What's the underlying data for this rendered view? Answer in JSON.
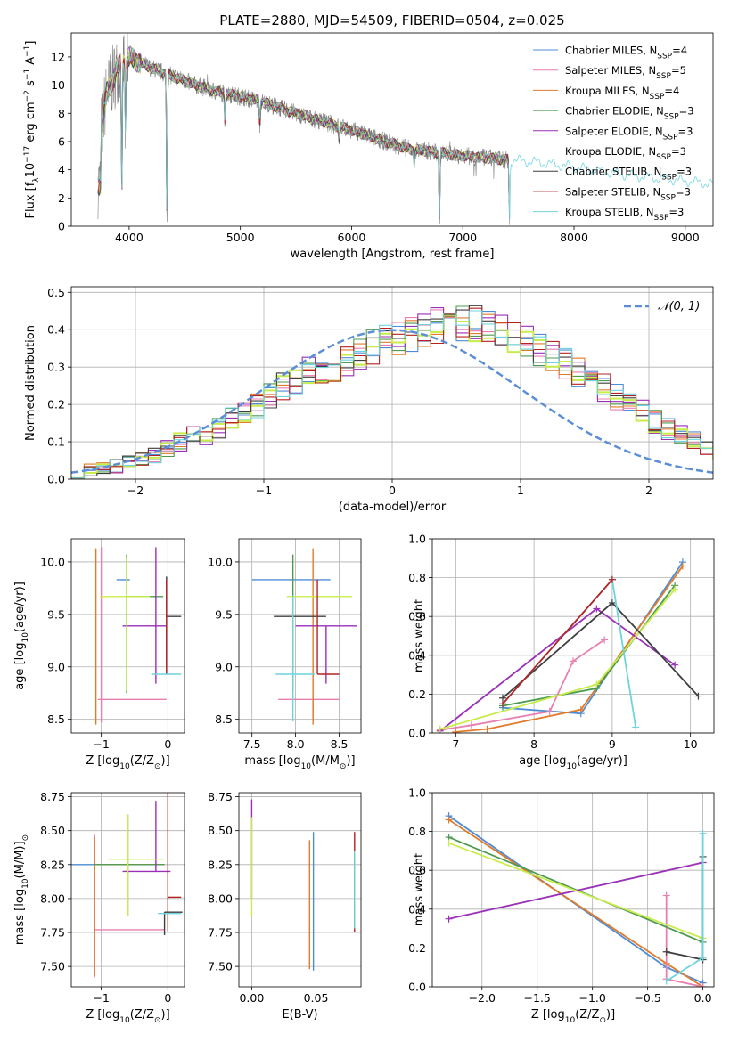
{
  "figure_title": "PLATE=2880, MJD=54509, FIBERID=0504, z=0.025",
  "colors": {
    "Chabrier MILES": "#4f8cd6",
    "Salpeter MILES": "#e87fb0",
    "Kroupa MILES": "#e07b2a",
    "Chabrier ELODIE": "#4e9a52",
    "Salpeter ELODIE": "#9a2fb8",
    "Kroupa ELODIE": "#c8ec4c",
    "Chabrier STELIB": "#3f3f3f",
    "Salpeter STELIB": "#b52222",
    "Kroupa STELIB": "#6fd3df",
    "data": "#808080",
    "normal": "#5b8ed6"
  },
  "chart_data": [
    {
      "id": "spectrum",
      "type": "line",
      "xlabel": "wavelength [Angstrom, rest frame]",
      "ylabel": "Flux [f",
      "ylabel_sub": "λ",
      "ylabel_rest": "10",
      "ylabel_exp": "−17",
      "ylabel_rest2": " erg cm",
      "ylabel_exp2": "−2",
      "ylabel_rest3": " s",
      "ylabel_exp3": "−1",
      "ylabel_rest4": " A",
      "ylabel_exp4": "−1",
      "ylabel_rest5": "]",
      "xlim": [
        3480,
        9250
      ],
      "ylim": [
        0,
        13.7
      ],
      "xticks": [
        4000,
        5000,
        6000,
        7000,
        8000,
        9000
      ],
      "yticks": [
        0,
        2,
        4,
        6,
        8,
        10,
        12
      ],
      "continuum": [
        [
          3750,
          7.0
        ],
        [
          3800,
          9.5
        ],
        [
          3900,
          11.2
        ],
        [
          4000,
          12.0
        ],
        [
          4100,
          11.6
        ],
        [
          4200,
          11.2
        ],
        [
          4400,
          10.6
        ],
        [
          4600,
          10.0
        ],
        [
          4800,
          9.5
        ],
        [
          5000,
          9.2
        ],
        [
          5200,
          8.8
        ],
        [
          5500,
          8.0
        ],
        [
          6000,
          6.8
        ],
        [
          6500,
          5.5
        ],
        [
          7000,
          5.0
        ],
        [
          7400,
          4.7
        ],
        [
          7600,
          4.6
        ],
        [
          8000,
          4.2
        ],
        [
          8500,
          3.6
        ],
        [
          9000,
          3.2
        ],
        [
          9250,
          3.0
        ]
      ],
      "data_range": [
        3720,
        7420
      ],
      "absorption_lines": [
        [
          3934,
          0.15
        ],
        [
          3968,
          0.55
        ],
        [
          4340,
          0.0
        ],
        [
          4861,
          0.8
        ],
        [
          5175,
          0.8
        ],
        [
          5890,
          0.85
        ],
        [
          6563,
          0.8
        ],
        [
          6790,
          0.0
        ],
        [
          7420,
          0.0
        ]
      ],
      "legend": [
        {
          "label": "Chabrier MILES, N",
          "sub": "SSP",
          "suffix": "=4"
        },
        {
          "label": "Salpeter MILES, N",
          "sub": "SSP",
          "suffix": "=5"
        },
        {
          "label": "Kroupa MILES, N",
          "sub": "SSP",
          "suffix": "=4"
        },
        {
          "label": "Chabrier ELODIE, N",
          "sub": "SSP",
          "suffix": "=3"
        },
        {
          "label": "Salpeter ELODIE, N",
          "sub": "SSP",
          "suffix": "=3"
        },
        {
          "label": "Kroupa ELODIE, N",
          "sub": "SSP",
          "suffix": "=3"
        },
        {
          "label": "Chabrier STELIB, N",
          "sub": "SSP",
          "suffix": "=3"
        },
        {
          "label": "Salpeter STELIB, N",
          "sub": "SSP",
          "suffix": "=3"
        },
        {
          "label": "Kroupa STELIB, N",
          "sub": "SSP",
          "suffix": "=3"
        }
      ]
    },
    {
      "id": "residuals",
      "type": "histogram",
      "xlabel": "(data-model)/error",
      "ylabel": "Normed distribution",
      "xlim": [
        -2.5,
        2.5
      ],
      "ylim": [
        0,
        0.515
      ],
      "xticks": [
        -2,
        -1,
        0,
        1,
        2
      ],
      "yticks": [
        0.0,
        0.1,
        0.2,
        0.3,
        0.4,
        0.5
      ],
      "bin_width": 0.1,
      "bin_start": -2.5,
      "base_values": [
        0.018,
        0.025,
        0.03,
        0.035,
        0.045,
        0.055,
        0.065,
        0.085,
        0.1,
        0.115,
        0.12,
        0.14,
        0.16,
        0.18,
        0.195,
        0.22,
        0.245,
        0.265,
        0.285,
        0.29,
        0.3,
        0.32,
        0.34,
        0.355,
        0.37,
        0.38,
        0.39,
        0.4,
        0.41,
        0.41,
        0.42,
        0.415,
        0.41,
        0.395,
        0.38,
        0.365,
        0.345,
        0.33,
        0.31,
        0.29,
        0.27,
        0.245,
        0.22,
        0.2,
        0.18,
        0.155,
        0.135,
        0.115,
        0.1,
        0.085,
        0.07,
        0.06,
        0.05,
        0.045,
        0.04,
        0.035,
        0.03,
        0.028,
        0.025,
        0.025
      ],
      "legend": "𝒩(0, 1)"
    },
    {
      "id": "age_vs_Z",
      "type": "errorbar",
      "xlabel": "Z [log",
      "xlabel_sub": "10",
      "xlabel_rest": "(Z/Z",
      "xlabel_sub2": "⊙",
      "xlabel_rest2": ")]",
      "ylabel": "age  [log",
      "ylabel_sub": "10",
      "ylabel_rest": "(age/yr)]",
      "xlim": [
        -1.45,
        0.25
      ],
      "ylim": [
        8.37,
        10.22
      ],
      "xticks": [
        -1,
        0
      ],
      "yticks": [
        8.5,
        9.0,
        9.5,
        10.0
      ],
      "points": [
        {
          "s": "Chabrier MILES",
          "x": -1.02,
          "y": 9.83,
          "xe": [
            -0.45,
            0.25
          ],
          "ye": [
            0,
            0
          ]
        },
        {
          "s": "Salpeter MILES",
          "x": -1.0,
          "y": 8.69,
          "xe": [
            0.05,
            0.98
          ],
          "ye": [
            0.22,
            1.45
          ]
        },
        {
          "s": "Kroupa MILES",
          "x": -1.08,
          "y": 9.83,
          "xe": [
            0.0,
            0.0
          ],
          "ye": [
            1.38,
            0.3
          ]
        },
        {
          "s": "Chabrier ELODIE",
          "x": -0.62,
          "y": 9.67,
          "xe": [
            0.0,
            0.55
          ],
          "ye": [
            0.92,
            0.4
          ]
        },
        {
          "s": "Salpeter ELODIE",
          "x": -0.18,
          "y": 9.39,
          "xe": [
            0.5,
            0.15
          ],
          "ye": [
            0.55,
            0.75
          ]
        },
        {
          "s": "Kroupa ELODIE",
          "x": -0.62,
          "y": 9.67,
          "xe": [
            0.4,
            0.35
          ],
          "ye": [
            0.9,
            0.38
          ]
        },
        {
          "s": "Chabrier STELIB",
          "x": -0.02,
          "y": 9.48,
          "xe": [
            0.0,
            0.22
          ],
          "ye": [
            0.55,
            0.38
          ]
        },
        {
          "s": "Salpeter STELIB",
          "x": -0.02,
          "y": 9.83,
          "xe": [
            0.0,
            0.0
          ],
          "ye": [
            0.9,
            0.0
          ]
        },
        {
          "s": "Kroupa STELIB",
          "x": 0.0,
          "y": 8.93,
          "xe": [
            0.25,
            0.2
          ],
          "ye": [
            0.0,
            0.0
          ]
        }
      ]
    },
    {
      "id": "age_vs_mass",
      "type": "errorbar",
      "xlabel": "mass [log",
      "xlabel_sub": "10",
      "xlabel_rest": "(M/M",
      "xlabel_sub2": "⊙",
      "xlabel_rest2": ")]",
      "ylabel": "",
      "xlim": [
        7.35,
        8.75
      ],
      "ylim": [
        8.37,
        10.22
      ],
      "xticks": [
        7.5,
        8.0,
        8.5
      ],
      "yticks": [
        8.5,
        9.0,
        9.5,
        10.0
      ],
      "points": [
        {
          "s": "Chabrier MILES",
          "x": 8.2,
          "y": 9.83,
          "xe": [
            0.7,
            0.2
          ],
          "ye": [
            0,
            0
          ]
        },
        {
          "s": "Salpeter MILES",
          "x": 8.2,
          "y": 8.69,
          "xe": [
            0.4,
            0.3
          ],
          "ye": [
            0.2,
            0.0
          ]
        },
        {
          "s": "Kroupa MILES",
          "x": 8.2,
          "y": 9.83,
          "xe": [
            0.0,
            0.0
          ],
          "ye": [
            1.38,
            0.3
          ]
        },
        {
          "s": "Chabrier ELODIE",
          "x": 7.97,
          "y": 9.67,
          "xe": [
            0.0,
            0.0
          ],
          "ye": [
            0.9,
            0.4
          ]
        },
        {
          "s": "Salpeter ELODIE",
          "x": 8.35,
          "y": 9.39,
          "xe": [
            0.35,
            0.35
          ],
          "ye": [
            0.55,
            0.0
          ]
        },
        {
          "s": "Kroupa ELODIE",
          "x": 8.2,
          "y": 9.67,
          "xe": [
            0.3,
            0.45
          ],
          "ye": [
            0.0,
            0.0
          ]
        },
        {
          "s": "Chabrier STELIB",
          "x": 8.1,
          "y": 9.48,
          "xe": [
            0.35,
            0.25
          ],
          "ye": [
            0.0,
            0.0
          ]
        },
        {
          "s": "Salpeter STELIB",
          "x": 8.25,
          "y": 8.93,
          "xe": [
            0.0,
            0.25
          ],
          "ye": [
            0.0,
            0.9
          ]
        },
        {
          "s": "Kroupa STELIB",
          "x": 7.97,
          "y": 8.93,
          "xe": [
            0.2,
            0.25
          ],
          "ye": [
            0.45,
            0.75
          ]
        }
      ]
    },
    {
      "id": "weight_vs_age",
      "type": "line",
      "xlabel": "age  [log",
      "xlabel_sub": "10",
      "xlabel_rest": "(age/yr)]",
      "ylabel": "mass weight",
      "xlim": [
        6.7,
        10.3
      ],
      "ylim": [
        0,
        1.0
      ],
      "xticks": [
        7,
        8,
        9,
        10
      ],
      "yticks": [
        0.0,
        0.2,
        0.4,
        0.6,
        0.8,
        1.0
      ],
      "series": [
        {
          "s": "Chabrier MILES",
          "x": [
            7.6,
            8.6,
            9.9
          ],
          "y": [
            0.13,
            0.1,
            0.88
          ]
        },
        {
          "s": "Kroupa MILES",
          "x": [
            7.0,
            7.4,
            8.6,
            9.9
          ],
          "y": [
            0.005,
            0.02,
            0.12,
            0.86
          ]
        },
        {
          "s": "Salpeter MILES",
          "x": [
            6.8,
            7.2,
            8.2,
            8.5,
            8.9
          ],
          "y": [
            0.015,
            0.04,
            0.11,
            0.37,
            0.48
          ]
        },
        {
          "s": "Chabrier ELODIE",
          "x": [
            7.6,
            8.8,
            9.8
          ],
          "y": [
            0.14,
            0.23,
            0.76
          ]
        },
        {
          "s": "Salpeter ELODIE",
          "x": [
            6.8,
            8.8,
            9.8
          ],
          "y": [
            0.01,
            0.64,
            0.35
          ]
        },
        {
          "s": "Kroupa ELODIE",
          "x": [
            6.8,
            8.8,
            9.8
          ],
          "y": [
            0.02,
            0.25,
            0.74
          ]
        },
        {
          "s": "Chabrier STELIB",
          "x": [
            7.6,
            9.0,
            10.1
          ],
          "y": [
            0.18,
            0.67,
            0.19
          ]
        },
        {
          "s": "Kroupa STELIB",
          "x": [
            7.6,
            9.0,
            9.3
          ],
          "y": [
            0.15,
            0.79,
            0.03
          ]
        },
        {
          "s": "Salpeter STELIB",
          "x": [
            7.6,
            9.0
          ],
          "y": [
            0.15,
            0.79
          ]
        }
      ]
    },
    {
      "id": "mass_vs_Z",
      "type": "errorbar",
      "xlabel": "Z [log",
      "xlabel_sub": "10",
      "xlabel_rest": "(Z/Z",
      "xlabel_sub2": "⊙",
      "xlabel_rest2": ")]",
      "ylabel": "mass [log",
      "ylabel_sub": "10",
      "ylabel_rest": "(M/M",
      "ylabel_sub2": "⊙",
      "ylabel_rest2": ")]",
      "xlim": [
        -1.45,
        0.25
      ],
      "ylim": [
        7.35,
        8.78
      ],
      "xticks": [
        -1,
        0
      ],
      "yticks": [
        7.5,
        7.75,
        8.0,
        8.25,
        8.5,
        8.75
      ],
      "points": [
        {
          "s": "Chabrier MILES",
          "x": -1.1,
          "y": 8.25,
          "xe": [
            0.35,
            0.3
          ],
          "ye": [
            0.0,
            0.0
          ]
        },
        {
          "s": "Salpeter MILES",
          "x": -1.1,
          "y": 7.77,
          "xe": [
            0.0,
            1.05
          ],
          "ye": [
            0.35,
            0.7
          ]
        },
        {
          "s": "Kroupa MILES",
          "x": -1.1,
          "y": 8.25,
          "xe": [
            0.0,
            1.05
          ],
          "ye": [
            0.82,
            0.2
          ]
        },
        {
          "s": "Chabrier ELODIE",
          "x": -0.6,
          "y": 8.25,
          "xe": [
            0.5,
            0.55
          ],
          "ye": [
            0.38,
            0.37
          ]
        },
        {
          "s": "Salpeter ELODIE",
          "x": -0.18,
          "y": 8.2,
          "xe": [
            0.5,
            0.22
          ],
          "ye": [
            0.0,
            0.52
          ]
        },
        {
          "s": "Kroupa ELODIE",
          "x": -0.6,
          "y": 8.29,
          "xe": [
            0.3,
            0.55
          ],
          "ye": [
            0.42,
            0.33
          ]
        },
        {
          "s": "Chabrier STELIB",
          "x": -0.05,
          "y": 7.9,
          "xe": [
            0.0,
            0.27
          ],
          "ye": [
            0.17,
            0.0
          ]
        },
        {
          "s": "Salpeter STELIB",
          "x": 0.0,
          "y": 8.01,
          "xe": [
            0.0,
            0.2
          ],
          "ye": [
            0.25,
            0.77
          ]
        },
        {
          "s": "Kroupa STELIB",
          "x": 0.0,
          "y": 7.89,
          "xe": [
            0.15,
            0.2
          ],
          "ye": [
            0.0,
            0.0
          ]
        }
      ]
    },
    {
      "id": "mass_vs_ebv",
      "type": "errorbar",
      "xlabel": "E(B-V)",
      "ylabel": "",
      "xlim": [
        -0.01,
        0.085
      ],
      "ylim": [
        7.35,
        8.78
      ],
      "xticks": [
        0.0,
        0.05
      ],
      "yticks": [
        7.5,
        7.75,
        8.0,
        8.25,
        8.5,
        8.75
      ],
      "points": [
        {
          "s": "Salpeter ELODIE",
          "x": 0.0,
          "y": 8.4,
          "xe": [
            0,
            0
          ],
          "ye": [
            0.4,
            0.33
          ]
        },
        {
          "s": "Kroupa ELODIE",
          "x": 0.0,
          "y": 8.25,
          "xe": [
            0,
            0
          ],
          "ye": [
            0.38,
            0.35
          ]
        },
        {
          "s": "Kroupa MILES",
          "x": 0.045,
          "y": 7.9,
          "xe": [
            0,
            0
          ],
          "ye": [
            0.42,
            0.53
          ]
        },
        {
          "s": "Chabrier MILES",
          "x": 0.048,
          "y": 8.0,
          "xe": [
            0,
            0
          ],
          "ye": [
            0.53,
            0.49
          ]
        },
        {
          "s": "Salpeter STELIB",
          "x": 0.08,
          "y": 8.1,
          "xe": [
            0,
            0
          ],
          "ye": [
            0.35,
            0.39
          ]
        },
        {
          "s": "Kroupa STELIB",
          "x": 0.08,
          "y": 8.0,
          "xe": [
            0,
            0
          ],
          "ye": [
            0.22,
            0.35
          ]
        }
      ]
    },
    {
      "id": "weight_vs_Z",
      "type": "line",
      "xlabel": "Z [log",
      "xlabel_sub": "10",
      "xlabel_rest": "(Z/Z",
      "xlabel_sub2": "⊙",
      "xlabel_rest2": ")]",
      "ylabel": "mass weight",
      "xlim": [
        -2.45,
        0.1
      ],
      "ylim": [
        0,
        1.0
      ],
      "xticks": [
        -2.0,
        -1.5,
        -1.0,
        -0.5,
        0.0
      ],
      "yticks": [
        0.0,
        0.2,
        0.4,
        0.6,
        0.8,
        1.0
      ],
      "series": [
        {
          "s": "Chabrier MILES",
          "x": [
            -2.3,
            -0.33,
            0.0
          ],
          "y": [
            0.88,
            0.1,
            0.02
          ]
        },
        {
          "s": "Kroupa MILES",
          "x": [
            -2.3,
            -0.33,
            0.0
          ],
          "y": [
            0.86,
            0.12,
            0.0
          ]
        },
        {
          "s": "Salpeter MILES",
          "x": [
            -0.33,
            -0.33,
            0.0
          ],
          "y": [
            0.47,
            0.04,
            0.0
          ]
        },
        {
          "s": "Chabrier ELODIE",
          "x": [
            -2.3,
            0.0
          ],
          "y": [
            0.77,
            0.23
          ]
        },
        {
          "s": "Salpeter ELODIE",
          "x": [
            -2.3,
            0.0
          ],
          "y": [
            0.35,
            0.64
          ]
        },
        {
          "s": "Kroupa ELODIE",
          "x": [
            -2.3,
            0.0
          ],
          "y": [
            0.74,
            0.25
          ]
        },
        {
          "s": "Chabrier STELIB",
          "x": [
            -0.33,
            0.0,
            0.0
          ],
          "y": [
            0.18,
            0.14,
            0.67
          ]
        },
        {
          "s": "Kroupa STELIB",
          "x": [
            -0.33,
            0.0,
            0.0
          ],
          "y": [
            0.03,
            0.15,
            0.79
          ]
        }
      ]
    }
  ]
}
